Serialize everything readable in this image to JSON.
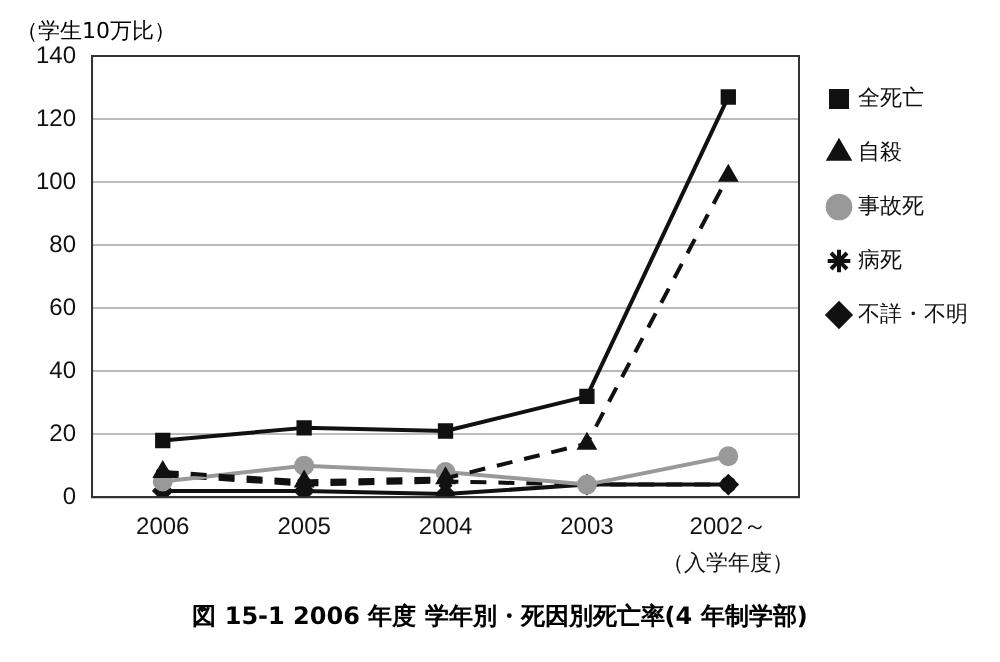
{
  "chart_data": {
    "type": "line",
    "title": "図 15-1  2006 年度 学年別・死因別死亡率(4 年制学部)",
    "ylabel": "（学生10万比）",
    "xlabel": "（入学年度）",
    "categories": [
      "2006",
      "2005",
      "2004",
      "2003",
      "2002～"
    ],
    "series": [
      {
        "name": "全死亡",
        "color": "#111111",
        "marker": "square",
        "line_style": "solid",
        "values": [
          18,
          22,
          21,
          32,
          127
        ]
      },
      {
        "name": "自殺",
        "color": "#111111",
        "marker": "triangle",
        "line_style": "dashed",
        "values": [
          8,
          5,
          6,
          17,
          102
        ]
      },
      {
        "name": "事故死",
        "color": "#999999",
        "marker": "circle",
        "line_style": "solid",
        "values": [
          5,
          10,
          8,
          4,
          13
        ]
      },
      {
        "name": "病死",
        "color": "#111111",
        "marker": "cross",
        "line_style": "dashed",
        "values": [
          7,
          4,
          5,
          4,
          4
        ]
      },
      {
        "name": "不詳・不明",
        "color": "#111111",
        "marker": "diamond",
        "line_style": "solid",
        "values": [
          2,
          2,
          1,
          4,
          4
        ]
      }
    ],
    "ylim": [
      0,
      140
    ],
    "yticks": [
      0,
      20,
      40,
      60,
      80,
      100,
      120,
      140
    ],
    "grid": "y",
    "legend": "right"
  }
}
